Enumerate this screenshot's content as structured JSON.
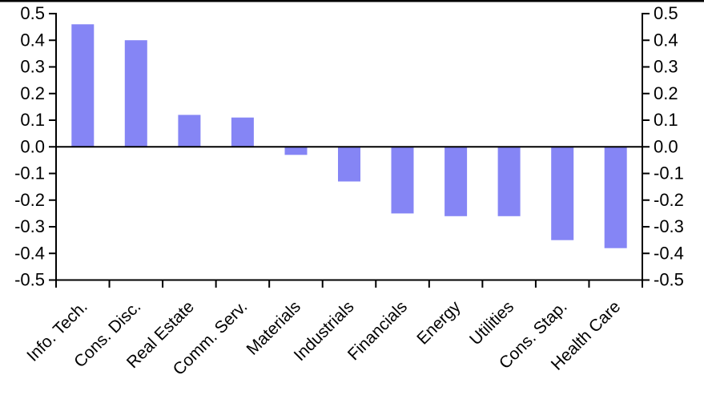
{
  "chart_data": {
    "type": "bar",
    "title": "",
    "xlabel": "",
    "ylabel": "",
    "categories": [
      "Info. Tech.",
      "Cons. Disc.",
      "Real Estate",
      "Comm. Serv.",
      "Materials",
      "Industrials",
      "Financials",
      "Energy",
      "Utilities",
      "Cons. Stap.",
      "Health Care"
    ],
    "values": [
      0.46,
      0.4,
      0.12,
      0.11,
      -0.03,
      -0.13,
      -0.25,
      -0.26,
      -0.26,
      -0.35,
      -0.38
    ],
    "ylim": [
      -0.5,
      0.5
    ],
    "y_tick_labels_left": [
      "0.5",
      "0.4",
      "0.3",
      "0.2",
      "0.1",
      "0.0",
      "-0.1",
      "-0.2",
      "-0.3",
      "-0.4",
      "-0.5"
    ],
    "y_tick_labels_right": [
      "0.5",
      "0.4",
      "0.3",
      "0.2",
      "0.1",
      "0.0",
      "-0.1",
      "-0.2",
      "-0.3",
      "-0.4",
      "-0.5"
    ],
    "grid": false,
    "legend": "none",
    "bar_color": "#8585F5",
    "axis_color": "#000000",
    "background_color": "#FFFFFF",
    "x_labels_rotation_deg": -45
  }
}
